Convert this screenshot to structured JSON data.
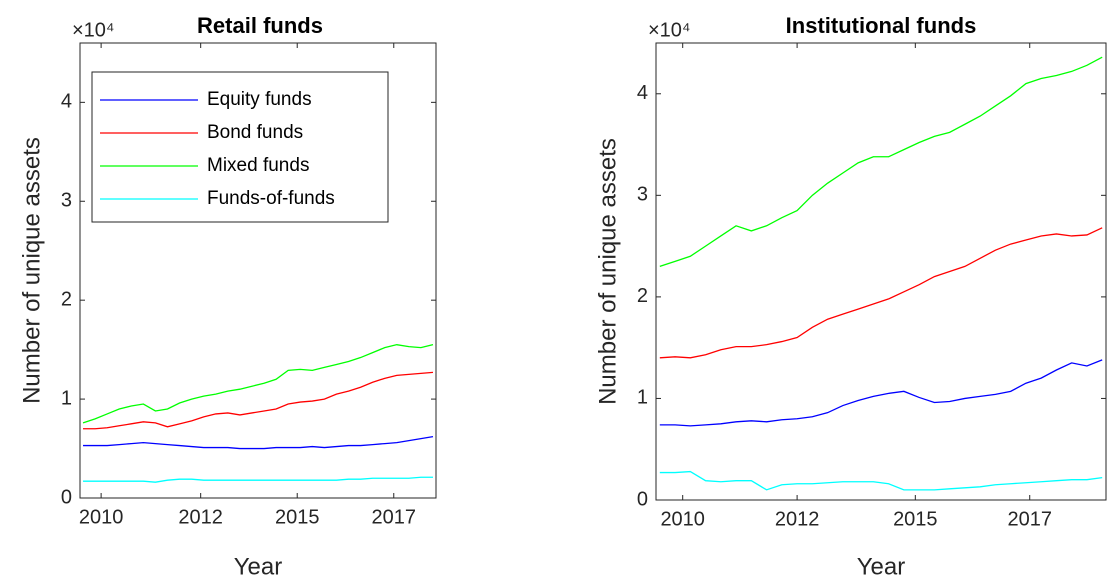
{
  "chart_data": [
    {
      "type": "line",
      "title": "Retail funds",
      "y_multiplier": "×10⁴",
      "xlabel": "Year",
      "ylabel": "Number of unique assets",
      "x": [
        1,
        5,
        9,
        13,
        17,
        21,
        25,
        29,
        33,
        37,
        41,
        45,
        49,
        53,
        57,
        61,
        65,
        69,
        73,
        77,
        81,
        85,
        89,
        93,
        97,
        101,
        105,
        109,
        113,
        117
      ],
      "xlim": [
        0,
        118
      ],
      "xticks": [
        {
          "value": 7,
          "label": "2010"
        },
        {
          "value": 40,
          "label": "2012"
        },
        {
          "value": 72,
          "label": "2015"
        },
        {
          "value": 104,
          "label": "2017"
        }
      ],
      "ylim": [
        0,
        4.6
      ],
      "yticks": [
        0,
        1,
        2,
        3,
        4
      ],
      "legend": "upper left",
      "series": [
        {
          "name": "Equity funds",
          "color": "#0000ff",
          "values": [
            0.53,
            0.53,
            0.53,
            0.54,
            0.55,
            0.56,
            0.55,
            0.54,
            0.53,
            0.52,
            0.51,
            0.51,
            0.51,
            0.5,
            0.5,
            0.5,
            0.51,
            0.51,
            0.51,
            0.52,
            0.51,
            0.52,
            0.53,
            0.53,
            0.54,
            0.55,
            0.56,
            0.58,
            0.6,
            0.62
          ]
        },
        {
          "name": "Bond funds",
          "color": "#ff0000",
          "values": [
            0.7,
            0.7,
            0.71,
            0.73,
            0.75,
            0.77,
            0.76,
            0.72,
            0.75,
            0.78,
            0.82,
            0.85,
            0.86,
            0.84,
            0.86,
            0.88,
            0.9,
            0.95,
            0.97,
            0.98,
            1.0,
            1.05,
            1.08,
            1.12,
            1.17,
            1.21,
            1.24,
            1.25,
            1.26,
            1.27
          ]
        },
        {
          "name": "Mixed funds",
          "color": "#00ff00",
          "values": [
            0.76,
            0.8,
            0.85,
            0.9,
            0.93,
            0.95,
            0.88,
            0.9,
            0.96,
            1.0,
            1.03,
            1.05,
            1.08,
            1.1,
            1.13,
            1.16,
            1.2,
            1.29,
            1.3,
            1.29,
            1.32,
            1.35,
            1.38,
            1.42,
            1.47,
            1.52,
            1.55,
            1.53,
            1.52,
            1.55
          ]
        },
        {
          "name": "Funds-of-funds",
          "color": "#00ffff",
          "values": [
            0.17,
            0.17,
            0.17,
            0.17,
            0.17,
            0.17,
            0.16,
            0.18,
            0.19,
            0.19,
            0.18,
            0.18,
            0.18,
            0.18,
            0.18,
            0.18,
            0.18,
            0.18,
            0.18,
            0.18,
            0.18,
            0.18,
            0.19,
            0.19,
            0.2,
            0.2,
            0.2,
            0.2,
            0.21,
            0.21
          ]
        }
      ]
    },
    {
      "type": "line",
      "title": "Institutional funds",
      "y_multiplier": "×10⁴",
      "xlabel": "Year",
      "ylabel": "Number of unique assets",
      "x": [
        1,
        5,
        9,
        13,
        17,
        21,
        25,
        29,
        33,
        37,
        41,
        45,
        49,
        53,
        57,
        61,
        65,
        69,
        73,
        77,
        81,
        85,
        89,
        93,
        97,
        101,
        105,
        109,
        113,
        117
      ],
      "xlim": [
        0,
        118
      ],
      "xticks": [
        {
          "value": 7,
          "label": "2010"
        },
        {
          "value": 37,
          "label": "2012"
        },
        {
          "value": 68,
          "label": "2015"
        },
        {
          "value": 98,
          "label": "2017"
        }
      ],
      "ylim": [
        0,
        4.5
      ],
      "yticks": [
        0,
        1,
        2,
        3,
        4
      ],
      "series": [
        {
          "color": "#0000ff",
          "values": [
            0.74,
            0.74,
            0.73,
            0.74,
            0.75,
            0.77,
            0.78,
            0.77,
            0.79,
            0.8,
            0.82,
            0.86,
            0.93,
            0.98,
            1.02,
            1.05,
            1.07,
            1.01,
            0.96,
            0.97,
            1.0,
            1.02,
            1.04,
            1.07,
            1.15,
            1.2,
            1.28,
            1.35,
            1.32,
            1.38
          ]
        },
        {
          "color": "#ff0000",
          "values": [
            1.4,
            1.41,
            1.4,
            1.43,
            1.48,
            1.51,
            1.51,
            1.53,
            1.56,
            1.6,
            1.7,
            1.78,
            1.83,
            1.88,
            1.93,
            1.98,
            2.05,
            2.12,
            2.2,
            2.25,
            2.3,
            2.38,
            2.46,
            2.52,
            2.56,
            2.6,
            2.62,
            2.6,
            2.61,
            2.68
          ]
        },
        {
          "color": "#00ff00",
          "values": [
            2.3,
            2.35,
            2.4,
            2.5,
            2.6,
            2.7,
            2.65,
            2.7,
            2.78,
            2.85,
            3.0,
            3.12,
            3.22,
            3.32,
            3.38,
            3.38,
            3.45,
            3.52,
            3.58,
            3.62,
            3.7,
            3.78,
            3.88,
            3.98,
            4.1,
            4.15,
            4.18,
            4.22,
            4.28,
            4.36
          ]
        },
        {
          "color": "#00ffff",
          "values": [
            0.27,
            0.27,
            0.28,
            0.19,
            0.18,
            0.19,
            0.19,
            0.1,
            0.15,
            0.16,
            0.16,
            0.17,
            0.18,
            0.18,
            0.18,
            0.16,
            0.1,
            0.1,
            0.1,
            0.11,
            0.12,
            0.13,
            0.15,
            0.16,
            0.17,
            0.18,
            0.19,
            0.2,
            0.2,
            0.22
          ]
        }
      ]
    }
  ]
}
